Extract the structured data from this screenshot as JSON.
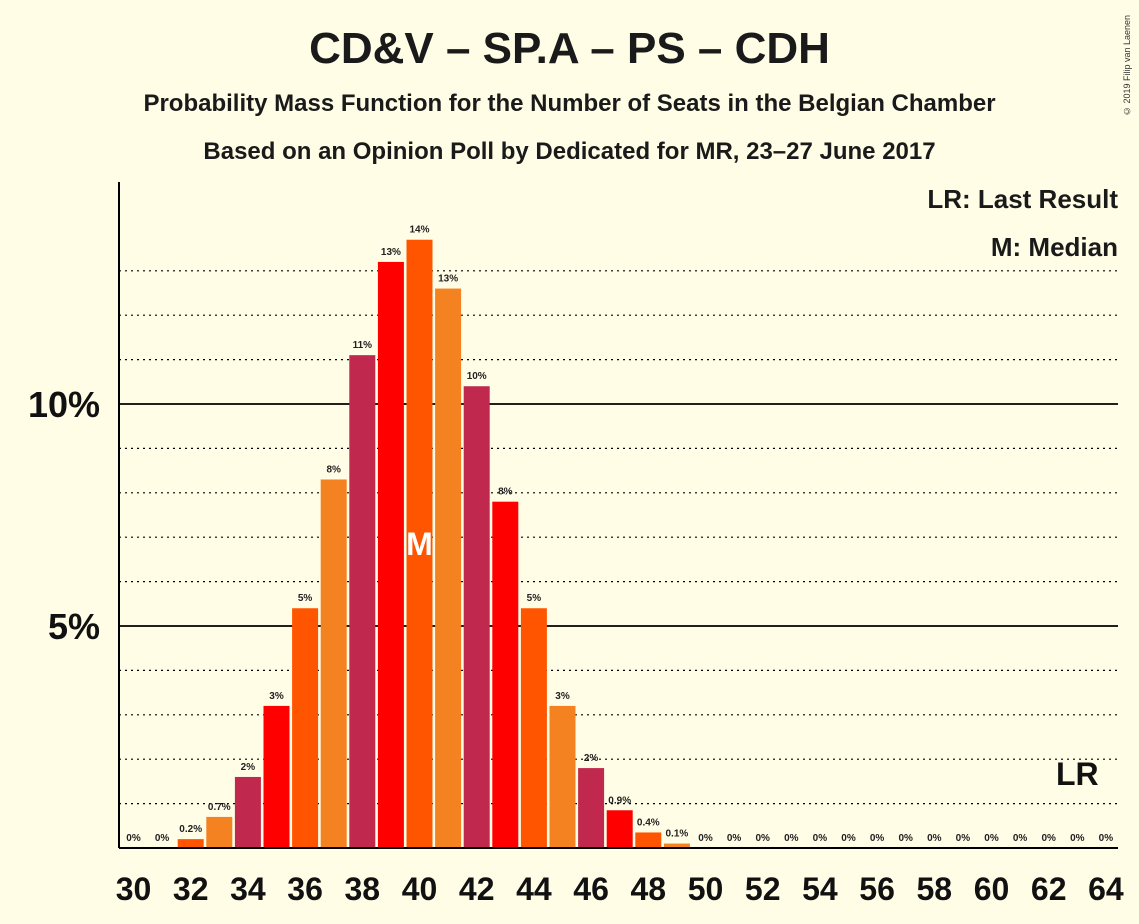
{
  "title": "CD&V – SP.A – PS – CDH",
  "subtitle_line1": "Probability Mass Function for the Number of Seats in the Belgian Chamber",
  "subtitle_line2": "Based on an Opinion Poll by Dedicated for MR, 23–27 June 2017",
  "copyright": "© 2019 Filip van Laenen",
  "legend": {
    "last_result": "LR: Last Result",
    "median": "M: Median"
  },
  "chart_data": {
    "type": "bar",
    "x": [
      30,
      31,
      32,
      33,
      34,
      35,
      36,
      37,
      38,
      39,
      40,
      41,
      42,
      43,
      44,
      45,
      46,
      47,
      48,
      49,
      50,
      51,
      52,
      53,
      54,
      55,
      56,
      57,
      58,
      59,
      60,
      61,
      62,
      63,
      64
    ],
    "values": [
      0,
      0,
      0.2,
      0.7,
      1.6,
      3.2,
      5.4,
      8.3,
      11.1,
      13.2,
      13.7,
      12.6,
      10.4,
      7.8,
      5.4,
      3.2,
      1.8,
      0.85,
      0.35,
      0.1,
      0,
      0,
      0,
      0,
      0,
      0,
      0,
      0,
      0,
      0,
      0,
      0,
      0,
      0,
      0
    ],
    "data_labels": [
      "0%",
      "0%",
      "0.2%",
      "0.7%",
      "2%",
      "3%",
      "5%",
      "8%",
      "11%",
      "13%",
      "14%",
      "13%",
      "10%",
      "8%",
      "5%",
      "3%",
      "2%",
      "0.9%",
      "0.4%",
      "0.1%",
      "0%",
      "0%",
      "0%",
      "0%",
      "0%",
      "0%",
      "0%",
      "0%",
      "0%",
      "0%",
      "0%",
      "0%",
      "0%",
      "0%",
      "0%"
    ],
    "x_tick_labels": [
      "30",
      "32",
      "34",
      "36",
      "38",
      "40",
      "42",
      "44",
      "46",
      "48",
      "50",
      "52",
      "54",
      "56",
      "58",
      "60",
      "62",
      "64"
    ],
    "y_tick_labels": [
      "5%",
      "10%"
    ],
    "y_ticks": [
      5,
      10
    ],
    "ylim": [
      0,
      15
    ],
    "median_seat": 40,
    "median_marker": "M",
    "last_result_seat": 63,
    "last_result_marker": "LR",
    "bar_colors": [
      "#C0294D",
      "#FF0000",
      "#FF5500",
      "#F58220"
    ],
    "grid": "dotted every 1%, solid at 5% and 10%"
  }
}
